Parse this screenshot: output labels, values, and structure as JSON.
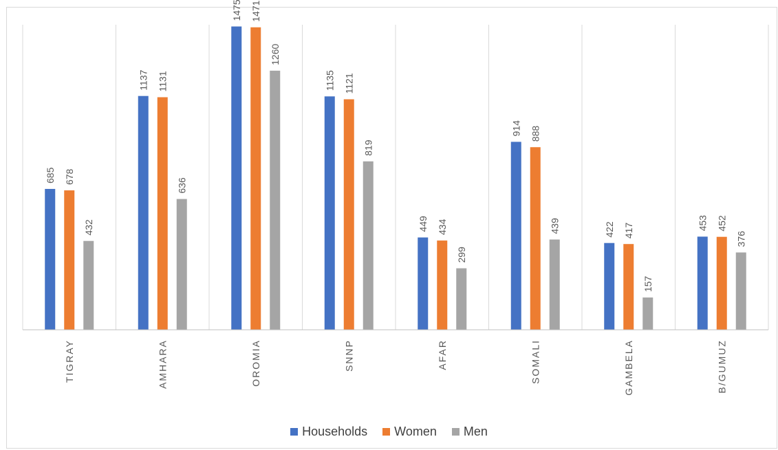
{
  "chart_data": {
    "type": "bar",
    "categories": [
      "TIGRAY",
      "AMHARA",
      "OROMIA",
      "SNNP",
      "AFAR",
      "SOMALI",
      "GAMBELA",
      "B/GUMUZ"
    ],
    "series": [
      {
        "name": "Households",
        "color": "#4472c4",
        "values": [
          685,
          1137,
          1475,
          1135,
          449,
          914,
          422,
          453
        ]
      },
      {
        "name": "Women",
        "color": "#ed7d31",
        "values": [
          678,
          1131,
          1471,
          1121,
          434,
          888,
          417,
          452
        ]
      },
      {
        "name": "Men",
        "color": "#a5a5a5",
        "values": [
          432,
          636,
          1260,
          819,
          299,
          439,
          157,
          376
        ]
      }
    ],
    "title": "",
    "xlabel": "",
    "ylabel": "",
    "ylim": [
      0,
      1600
    ],
    "grid": "vertical",
    "legend_position": "bottom",
    "data_labels": true
  }
}
